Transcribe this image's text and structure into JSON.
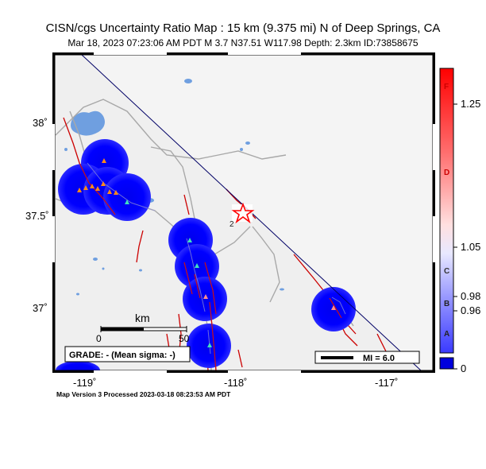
{
  "header": {
    "title": "CISN/cgs Uncertainty Ratio Map : 15 km (9.375 mi) N of Deep Springs, CA",
    "subtitle": "Mar 18, 2023 07:23:06 AM PDT   M 3.7   N37.51 W117.98   Depth: 2.3km   ID:73858675"
  },
  "map": {
    "lon_labels": [
      "-119˚",
      "-118˚",
      "-117˚"
    ],
    "lat_labels": [
      "38˚",
      "37.5˚",
      "37˚"
    ],
    "scale_bar": {
      "unit": "km",
      "ticks": [
        "0",
        "50"
      ]
    },
    "grade_text": "GRADE: - (Mean sigma: -)",
    "mi_legend": "MI = 6.0",
    "epicenter_label": "2",
    "colors": {
      "background": "#efefef",
      "uncertainty": "#0000ff",
      "faults": "#cc0000",
      "roads": "#a0a0a0",
      "water": "#6f9fe0",
      "network_boundary": "#000066"
    }
  },
  "colorbar": {
    "values": [
      "1.25",
      "1.05",
      "0.98",
      "0.96",
      "0"
    ],
    "letters": [
      "F",
      "D",
      "C",
      "B",
      "A"
    ]
  },
  "footer": {
    "text": "Map Version 3 Processed 2023-03-18 08:23:53 AM PDT"
  }
}
